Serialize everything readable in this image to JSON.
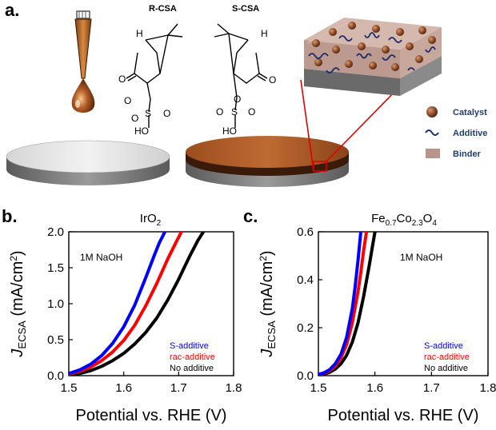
{
  "panel_a": {
    "letter": "a.",
    "molecule_r": "R-CSA",
    "molecule_s": "S-CSA",
    "legend": {
      "catalyst": "Catalyst",
      "additive": "Additive",
      "binder": "Binder"
    },
    "colors": {
      "catalyst": "#8a4a26",
      "binder": "#b8958a",
      "ink": "#b45f28"
    }
  },
  "chart_data": [
    {
      "panel": "b.",
      "type": "line",
      "title": "IrO2",
      "annotation": "1M NaOH",
      "xlabel": "Potential vs. RHE (V)",
      "ylabel": "JECSA (mA/cm2)",
      "xlim": [
        1.5,
        1.8
      ],
      "ylim": [
        0.0,
        2.0
      ],
      "xticks": [
        "1.5",
        "1.6",
        "1.7",
        "1.8"
      ],
      "yticks": [
        "0.0",
        "0.5",
        "1.0",
        "1.5",
        "2.0"
      ],
      "series": [
        {
          "name": "S-additive",
          "color": "#0000ff",
          "x": [
            1.5,
            1.52,
            1.54,
            1.56,
            1.58,
            1.6,
            1.62,
            1.64,
            1.655,
            1.665,
            1.675
          ],
          "y": [
            0.03,
            0.08,
            0.16,
            0.28,
            0.45,
            0.68,
            0.98,
            1.36,
            1.66,
            1.85,
            2.0
          ]
        },
        {
          "name": "rac-additive",
          "color": "#ff0000",
          "x": [
            1.5,
            1.52,
            1.54,
            1.56,
            1.58,
            1.6,
            1.62,
            1.64,
            1.66,
            1.68,
            1.695,
            1.705
          ],
          "y": [
            0.02,
            0.06,
            0.12,
            0.21,
            0.33,
            0.49,
            0.7,
            0.97,
            1.28,
            1.62,
            1.85,
            2.0
          ]
        },
        {
          "name": "No additive",
          "color": "#000000",
          "x": [
            1.5,
            1.52,
            1.54,
            1.56,
            1.58,
            1.6,
            1.62,
            1.64,
            1.66,
            1.68,
            1.7,
            1.72,
            1.735,
            1.745
          ],
          "y": [
            0.01,
            0.03,
            0.07,
            0.13,
            0.21,
            0.31,
            0.44,
            0.6,
            0.8,
            1.05,
            1.34,
            1.66,
            1.88,
            2.0
          ]
        }
      ]
    },
    {
      "panel": "c.",
      "type": "line",
      "title": "Fe0.7Co2.3O4",
      "annotation": "1M NaOH",
      "xlabel": "Potential vs. RHE (V)",
      "ylabel": "JECSA (mA/cm2)",
      "xlim": [
        1.5,
        1.8
      ],
      "ylim": [
        0.0,
        0.6
      ],
      "xticks": [
        "1.5",
        "1.6",
        "1.7",
        "1.8"
      ],
      "yticks": [
        "0.0",
        "0.2",
        "0.4",
        "0.6"
      ],
      "series": [
        {
          "name": "S-additive",
          "color": "#0000ff",
          "x": [
            1.5,
            1.51,
            1.52,
            1.53,
            1.54,
            1.55,
            1.56,
            1.565,
            1.57,
            1.575
          ],
          "y": [
            0.005,
            0.012,
            0.025,
            0.05,
            0.09,
            0.16,
            0.28,
            0.37,
            0.48,
            0.6
          ]
        },
        {
          "name": "rac-additive",
          "color": "#ff0000",
          "x": [
            1.5,
            1.51,
            1.52,
            1.53,
            1.54,
            1.55,
            1.56,
            1.57,
            1.575,
            1.58,
            1.585
          ],
          "y": [
            0.004,
            0.01,
            0.02,
            0.04,
            0.075,
            0.13,
            0.22,
            0.35,
            0.43,
            0.52,
            0.6
          ]
        },
        {
          "name": "No additive",
          "color": "#000000",
          "x": [
            1.5,
            1.51,
            1.52,
            1.53,
            1.54,
            1.55,
            1.56,
            1.57,
            1.58,
            1.59,
            1.595,
            1.6
          ],
          "y": [
            0.003,
            0.007,
            0.014,
            0.028,
            0.05,
            0.085,
            0.14,
            0.22,
            0.33,
            0.46,
            0.53,
            0.6
          ]
        }
      ]
    }
  ]
}
